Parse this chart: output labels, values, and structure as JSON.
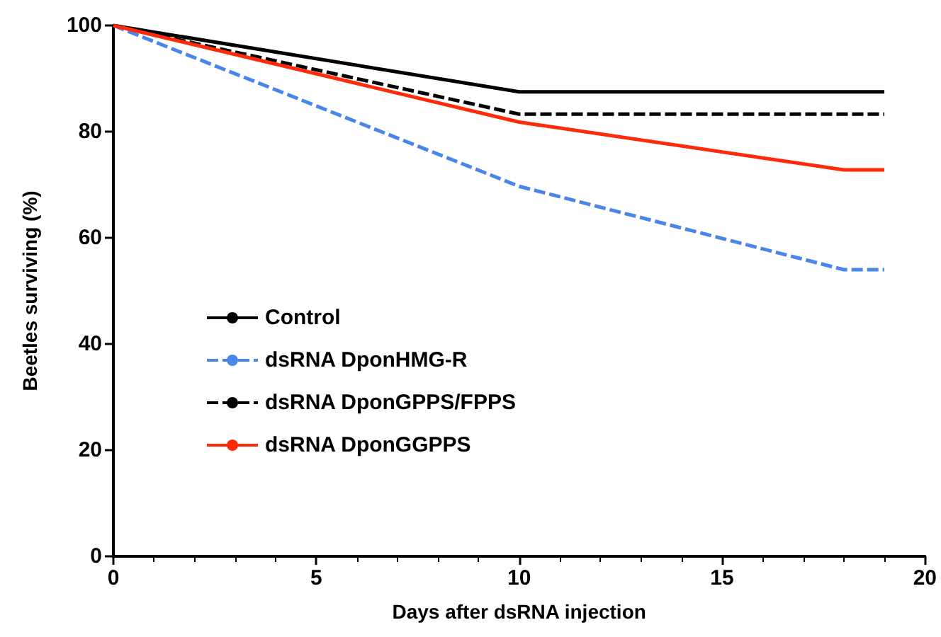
{
  "chart_data": {
    "type": "line",
    "xlabel": "Days after dsRNA injection",
    "ylabel": "Beetles surviving (%)",
    "x": [
      0,
      10,
      18,
      19
    ],
    "series": [
      {
        "name": "Control",
        "color": "#000000",
        "line_style": "solid",
        "values": [
          100,
          87.5,
          87.5,
          87.5
        ]
      },
      {
        "name": "dsRNA DponHMG-R",
        "color": "#4a86e8",
        "line_style": "dashed",
        "values": [
          100,
          69.7,
          54,
          54
        ]
      },
      {
        "name": "dsRNA DponGPPS/FPPS",
        "color": "#000000",
        "line_style": "dashed",
        "values": [
          100,
          83.3,
          83.3,
          83.3
        ]
      },
      {
        "name": "dsRNA DponGGPPS",
        "color": "#ff2a0a",
        "line_style": "solid",
        "values": [
          100,
          81.8,
          72.8,
          72.8
        ]
      }
    ],
    "xlim": [
      0,
      20
    ],
    "xticks": [
      0,
      5,
      10,
      15,
      20
    ],
    "ylim": [
      0,
      100
    ],
    "yticks": [
      0,
      20,
      40,
      60,
      80,
      100
    ],
    "grid": false,
    "legend": "left",
    "marker": "none"
  }
}
